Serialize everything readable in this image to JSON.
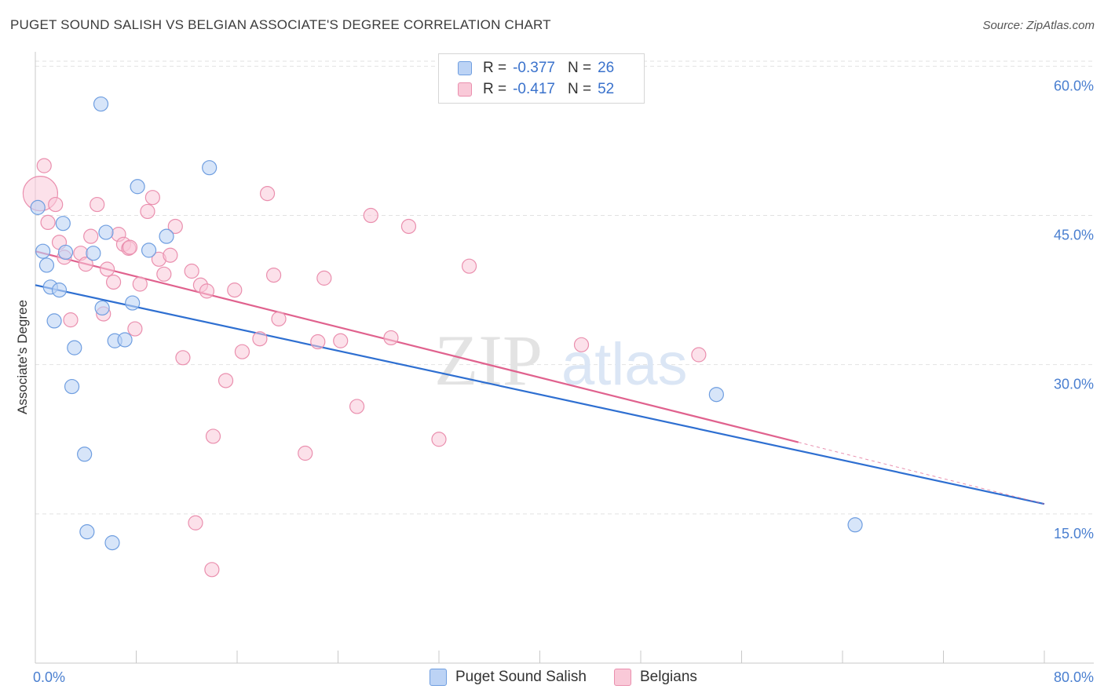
{
  "header": {
    "title": "PUGET SOUND SALISH VS BELGIAN ASSOCIATE'S DEGREE CORRELATION CHART",
    "source": "Source: ZipAtlas.com"
  },
  "legend": {
    "series": [
      {
        "name": "Puget Sound Salish",
        "r_label": "R =",
        "r_value": "-0.377",
        "n_label": "N =",
        "n_value": "26"
      },
      {
        "name": "Belgians",
        "r_label": "R =",
        "r_value": "-0.417",
        "n_label": "N =",
        "n_value": "52"
      }
    ]
  },
  "watermark": {
    "zip": "ZIP",
    "atlas": "atlas"
  },
  "colors": {
    "blue_fill": "#bcd3f5",
    "blue_stroke": "#6f9ee0",
    "blue_line": "#2e6fd1",
    "pink_fill": "#f9c9d8",
    "pink_stroke": "#ea8fae",
    "pink_line": "#e0628e"
  },
  "chart_data": {
    "type": "scatter",
    "title": "PUGET SOUND SALISH VS BELGIAN ASSOCIATE'S DEGREE CORRELATION CHART",
    "xlabel": "",
    "ylabel": "Associate's Degree",
    "xlim": [
      0,
      80
    ],
    "ylim": [
      0,
      63.5
    ],
    "x_tick_labels": [
      "0.0%",
      "80.0%"
    ],
    "y_ticks": [
      15,
      30,
      45,
      60
    ],
    "y_tick_labels": [
      "15.0%",
      "30.0%",
      "45.0%",
      "60.0%"
    ],
    "grid": true,
    "legend_position": "top-center",
    "series": [
      {
        "name": "Puget Sound Salish",
        "r": -0.377,
        "n": 26,
        "trend": {
          "x0": 0,
          "y0": 38.0,
          "x1": 80,
          "y1": 16.0
        },
        "points": [
          [
            0.2,
            45.8
          ],
          [
            0.6,
            41.4
          ],
          [
            0.9,
            40.0
          ],
          [
            1.2,
            37.8
          ],
          [
            1.5,
            34.4
          ],
          [
            1.9,
            37.5
          ],
          [
            2.2,
            44.2
          ],
          [
            2.4,
            41.3
          ],
          [
            2.9,
            27.8
          ],
          [
            3.1,
            31.7
          ],
          [
            3.9,
            21.0
          ],
          [
            4.1,
            13.2
          ],
          [
            4.6,
            41.2
          ],
          [
            5.2,
            56.2
          ],
          [
            5.3,
            35.7
          ],
          [
            5.6,
            43.3
          ],
          [
            6.1,
            12.1
          ],
          [
            6.3,
            32.4
          ],
          [
            7.1,
            32.5
          ],
          [
            7.7,
            36.2
          ],
          [
            8.1,
            47.9
          ],
          [
            9.0,
            41.5
          ],
          [
            10.4,
            42.9
          ],
          [
            13.8,
            49.8
          ],
          [
            54.0,
            27.0
          ],
          [
            65.0,
            13.9
          ]
        ]
      },
      {
        "name": "Belgians",
        "r": -0.417,
        "n": 52,
        "trend": {
          "x0": 0,
          "y0": 41.4,
          "x1": 60.5,
          "y1": 22.2
        },
        "trend_dashed": {
          "x0": 60.5,
          "y0": 22.2,
          "x1": 80,
          "y1": 16.0
        },
        "points": [
          [
            0.4,
            47.2
          ],
          [
            0.7,
            50.0
          ],
          [
            1.0,
            44.3
          ],
          [
            1.6,
            46.1
          ],
          [
            1.9,
            42.3
          ],
          [
            2.3,
            40.8
          ],
          [
            2.8,
            34.5
          ],
          [
            3.6,
            41.2
          ],
          [
            4.0,
            40.1
          ],
          [
            4.4,
            42.9
          ],
          [
            4.9,
            46.1
          ],
          [
            5.4,
            35.1
          ],
          [
            5.7,
            39.6
          ],
          [
            6.2,
            38.3
          ],
          [
            6.6,
            43.1
          ],
          [
            7.0,
            42.1
          ],
          [
            7.4,
            41.7
          ],
          [
            7.9,
            33.6
          ],
          [
            8.3,
            38.1
          ],
          [
            8.9,
            45.4
          ],
          [
            9.3,
            46.8
          ],
          [
            9.8,
            40.6
          ],
          [
            10.2,
            39.1
          ],
          [
            10.7,
            41.0
          ],
          [
            11.1,
            43.9
          ],
          [
            11.7,
            30.7
          ],
          [
            12.4,
            39.4
          ],
          [
            13.1,
            38.0
          ],
          [
            13.6,
            37.4
          ],
          [
            14.1,
            22.8
          ],
          [
            15.1,
            28.4
          ],
          [
            15.8,
            37.5
          ],
          [
            16.4,
            31.3
          ],
          [
            17.8,
            32.6
          ],
          [
            18.4,
            47.2
          ],
          [
            18.9,
            39.0
          ],
          [
            19.3,
            34.6
          ],
          [
            21.4,
            21.1
          ],
          [
            22.4,
            32.3
          ],
          [
            22.9,
            38.7
          ],
          [
            24.2,
            32.4
          ],
          [
            25.5,
            25.8
          ],
          [
            26.6,
            45.0
          ],
          [
            28.2,
            32.7
          ],
          [
            32.0,
            22.5
          ],
          [
            34.4,
            39.9
          ],
          [
            43.3,
            32.0
          ],
          [
            52.6,
            31.0
          ],
          [
            12.7,
            14.1
          ],
          [
            14.0,
            9.4
          ],
          [
            29.6,
            43.9
          ],
          [
            7.5,
            41.8
          ]
        ]
      }
    ]
  }
}
